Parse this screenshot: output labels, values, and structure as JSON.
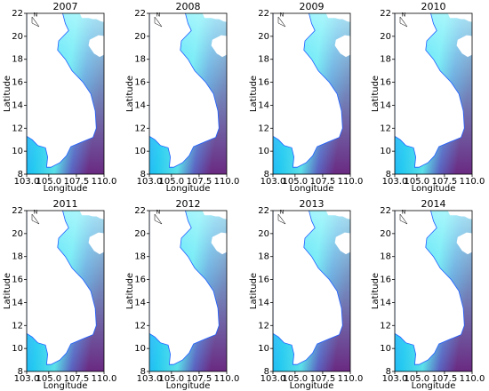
{
  "chart_data": [
    {
      "type": "map",
      "title": "2007",
      "xlabel": "Longitude",
      "ylabel": "Latitude",
      "north_label": "N",
      "xlim": [
        103,
        110
      ],
      "ylim": [
        8,
        22
      ],
      "xticks": [
        {
          "value": 103,
          "label": "103.0"
        },
        {
          "value": 105,
          "label": "105.0"
        },
        {
          "value": 107.5,
          "label": "107.5"
        },
        {
          "value": 110,
          "label": "110.0"
        }
      ],
      "yticks": [
        8,
        10,
        12,
        14,
        16,
        18,
        20,
        22
      ]
    },
    {
      "type": "map",
      "title": "2008",
      "xlabel": "Longitude",
      "ylabel": "Latitude",
      "north_label": "N",
      "xlim": [
        103,
        110
      ],
      "ylim": [
        8,
        22
      ],
      "xticks": [
        {
          "value": 103,
          "label": "103.0"
        },
        {
          "value": 105,
          "label": "105.0"
        },
        {
          "value": 107.5,
          "label": "107.5"
        },
        {
          "value": 110,
          "label": "110.0"
        }
      ],
      "yticks": [
        8,
        10,
        12,
        14,
        16,
        18,
        20,
        22
      ]
    },
    {
      "type": "map",
      "title": "2009",
      "xlabel": "Longitude",
      "ylabel": "Latitude",
      "north_label": "N",
      "xlim": [
        103,
        110
      ],
      "ylim": [
        8,
        22
      ],
      "xticks": [
        {
          "value": 103,
          "label": "103.0"
        },
        {
          "value": 105,
          "label": "105.0"
        },
        {
          "value": 107.5,
          "label": "107.5"
        },
        {
          "value": 110,
          "label": "110.0"
        }
      ],
      "yticks": [
        8,
        10,
        12,
        14,
        16,
        18,
        20,
        22
      ]
    },
    {
      "type": "map",
      "title": "2010",
      "xlabel": "Longitude",
      "ylabel": "Latitude",
      "north_label": "N",
      "xlim": [
        103,
        110
      ],
      "ylim": [
        8,
        22
      ],
      "xticks": [
        {
          "value": 103,
          "label": "103.0"
        },
        {
          "value": 105,
          "label": "105.0"
        },
        {
          "value": 107.5,
          "label": "107.5"
        },
        {
          "value": 110,
          "label": "110.0"
        }
      ],
      "yticks": [
        8,
        10,
        12,
        14,
        16,
        18,
        20,
        22
      ]
    },
    {
      "type": "map",
      "title": "2011",
      "xlabel": "Longitude",
      "ylabel": "Latitude",
      "north_label": "N",
      "xlim": [
        103,
        110
      ],
      "ylim": [
        8,
        22
      ],
      "xticks": [
        {
          "value": 103,
          "label": "103.0"
        },
        {
          "value": 105,
          "label": "105.0"
        },
        {
          "value": 107.5,
          "label": "107.5"
        },
        {
          "value": 110,
          "label": "110.0"
        }
      ],
      "yticks": [
        8,
        10,
        12,
        14,
        16,
        18,
        20,
        22
      ]
    },
    {
      "type": "map",
      "title": "2012",
      "xlabel": "Longitude",
      "ylabel": "Latitude",
      "north_label": "N",
      "xlim": [
        103,
        110
      ],
      "ylim": [
        8,
        22
      ],
      "xticks": [
        {
          "value": 103,
          "label": "103.0"
        },
        {
          "value": 105,
          "label": "105.0"
        },
        {
          "value": 107.5,
          "label": "107.5"
        },
        {
          "value": 110,
          "label": "110.0"
        }
      ],
      "yticks": [
        8,
        10,
        12,
        14,
        16,
        18,
        20,
        22
      ]
    },
    {
      "type": "map",
      "title": "2013",
      "xlabel": "Longitude",
      "ylabel": "Latitude",
      "north_label": "N",
      "xlim": [
        103,
        110
      ],
      "ylim": [
        8,
        22
      ],
      "xticks": [
        {
          "value": 103,
          "label": "103.0"
        },
        {
          "value": 105,
          "label": "105.0"
        },
        {
          "value": 107.5,
          "label": "107.5"
        },
        {
          "value": 110,
          "label": "110.0"
        }
      ],
      "yticks": [
        8,
        10,
        12,
        14,
        16,
        18,
        20,
        22
      ]
    },
    {
      "type": "map",
      "title": "2014",
      "xlabel": "Longitude",
      "ylabel": "Latitude",
      "north_label": "N",
      "xlim": [
        103,
        110
      ],
      "ylim": [
        8,
        22
      ],
      "xticks": [
        {
          "value": 103,
          "label": "103.0"
        },
        {
          "value": 105,
          "label": "105.0"
        },
        {
          "value": 107.5,
          "label": "107.5"
        },
        {
          "value": 110,
          "label": "110.0"
        }
      ],
      "yticks": [
        8,
        10,
        12,
        14,
        16,
        18,
        20,
        22
      ]
    }
  ]
}
